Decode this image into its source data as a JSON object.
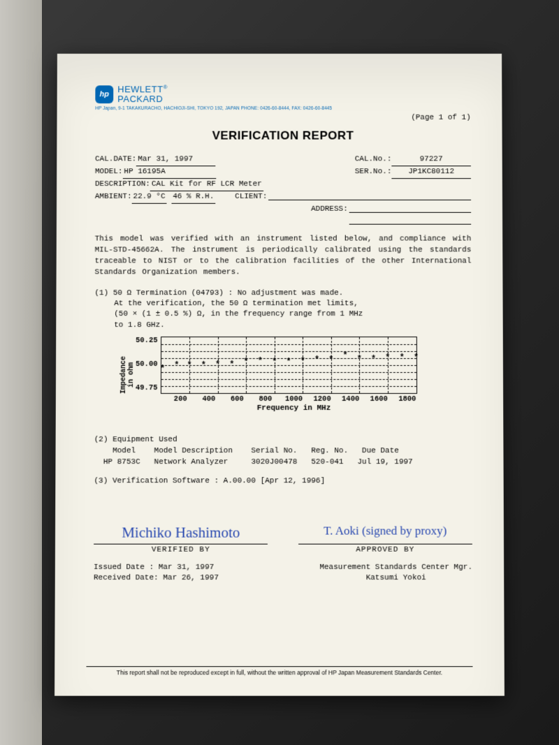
{
  "logo": {
    "badge": "hp",
    "line1": "HEWLETT",
    "line2": "PACKARD",
    "reg": "®"
  },
  "address": "HP Japan, 9-1 TAKAKURACHO, HACHIOJI-SHI, TOKYO 192, JAPAN   PHONE: 0426-60-8444, FAX: 0426-60-8445",
  "page": "(Page 1 of 1)",
  "title": "VERIFICATION REPORT",
  "fields": {
    "cal_date_lab": "CAL.DATE:",
    "cal_date": "Mar 31, 1997",
    "cal_no_lab": "CAL.No.:",
    "cal_no": "97227",
    "model_lab": "MODEL:",
    "model": "HP 16195A",
    "ser_no_lab": "SER.No.:",
    "ser_no": "JP1KC80112",
    "desc_lab": "DESCRIPTION:",
    "desc": "CAL Kit for RF LCR Meter",
    "amb_lab": "AMBIENT:",
    "amb1": "22.9 °C",
    "amb2": "46 % R.H.",
    "client_lab": "CLIENT:",
    "address_lab": "ADDRESS:"
  },
  "body1": "This model was verified with  an instrument listed below,  and compliance with MIL-STD-45662A. The instrument is periodically calibrated  using  the standards  traceable to  NIST or to the calibration facilities  of  the other International Standards Organization members.",
  "body2a": "(1) 50 Ω Termination (04793) : No adjustment was made.",
  "body2b": "At the verification, the 50 Ω termination met limits,",
  "body2c": "(50 × (1 ± 0.5 %) Ω, in the frequency range from 1 MHz",
  "body2d": "to 1.8 GHz.",
  "chart": {
    "ylabel": "Impedance\nin ohm",
    "xlabel": "Frequency in MHz",
    "yticks": [
      "50.25",
      "50.00",
      "49.75"
    ],
    "xticks": [
      "200",
      "400",
      "600",
      "800",
      "1000",
      "1200",
      "1400",
      "1600",
      "1800"
    ],
    "ylim": [
      49.75,
      50.25
    ],
    "xlim": [
      0,
      1800
    ],
    "marker": "*",
    "grid_h": [
      0.125,
      0.25,
      0.375,
      0.5,
      0.625,
      0.75,
      0.875
    ],
    "grid_v": [
      0.111,
      0.222,
      0.333,
      0.444,
      0.556,
      0.667,
      0.778,
      0.889
    ],
    "points": [
      {
        "x": 10,
        "y": 49.97
      },
      {
        "x": 110,
        "y": 50.0
      },
      {
        "x": 200,
        "y": 50.0
      },
      {
        "x": 300,
        "y": 50.0
      },
      {
        "x": 400,
        "y": 50.01
      },
      {
        "x": 500,
        "y": 50.01
      },
      {
        "x": 600,
        "y": 50.03
      },
      {
        "x": 700,
        "y": 50.04
      },
      {
        "x": 800,
        "y": 50.03
      },
      {
        "x": 900,
        "y": 50.03
      },
      {
        "x": 1000,
        "y": 50.04
      },
      {
        "x": 1100,
        "y": 50.05
      },
      {
        "x": 1200,
        "y": 50.05
      },
      {
        "x": 1300,
        "y": 50.09
      },
      {
        "x": 1400,
        "y": 50.06
      },
      {
        "x": 1500,
        "y": 50.06
      },
      {
        "x": 1600,
        "y": 50.07
      },
      {
        "x": 1700,
        "y": 50.07
      },
      {
        "x": 1800,
        "y": 50.07
      }
    ]
  },
  "equip_hdr": "(2) Equipment Used",
  "equip_cols": "    Model    Model Description    Serial No.   Reg. No.   Due Date",
  "equip_row": "  HP 8753C   Network Analyzer     3020J00478   520-041   Jul 19, 1997",
  "soft": "(3) Verification Software : A.00.00 [Apr 12, 1996]",
  "sig": {
    "left_hand": "Michiko Hashimoto",
    "left_cap": "VERIFIED BY",
    "right_hand": "T. Aoki (signed by proxy)",
    "right_cap": "APPROVED BY"
  },
  "dates": {
    "issued": "Issued Date  :  Mar 31, 1997",
    "received": "Received Date:  Mar 26, 1997",
    "r1": "Measurement Standards Center Mgr.",
    "r2": "Katsumi Yokoi"
  },
  "footer": "This report shall not be reproduced except in full, without the written approval of HP Japan Measurement Standards Center."
}
